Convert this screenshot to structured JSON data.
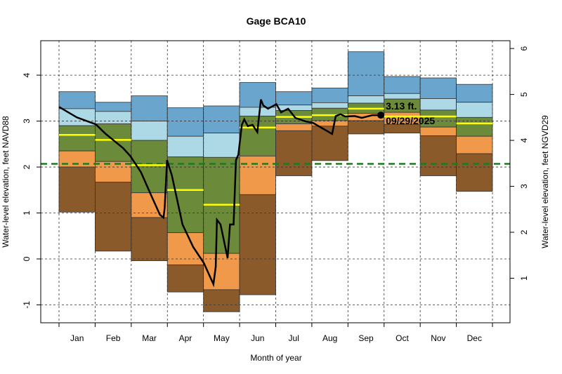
{
  "chart_data": {
    "type": "area",
    "title": "Gage BCA10",
    "xlabel": "Month of year",
    "ylabel": "Water-level elevation, feet NAVD88",
    "ylabel_right": "Water-level elevation, feet NGVD29",
    "ylim": [
      -1.39,
      4.75
    ],
    "yticks": [
      "-1",
      "0",
      "1",
      "2",
      "3",
      "4"
    ],
    "yticks_right": [
      "1",
      "2",
      "3",
      "4",
      "5",
      "6"
    ],
    "right_axis_offset_ft": 1.42,
    "grid": true,
    "months": [
      "Jan",
      "Feb",
      "Mar",
      "Apr",
      "May",
      "Jun",
      "Jul",
      "Aug",
      "Sep",
      "Oct",
      "Nov",
      "Dec"
    ],
    "band_colors": [
      "#6aa5cd",
      "#add8e6",
      "#6b8a3a",
      "#f0994a",
      "#8b5a2b"
    ],
    "median_color": "#ffff00",
    "monthly_bands": [
      {
        "month": "Jan",
        "levels": [
          3.64,
          3.27,
          2.9,
          2.35,
          2.0,
          1.02
        ],
        "median": 2.7
      },
      {
        "month": "Feb",
        "levels": [
          3.41,
          3.21,
          2.94,
          2.12,
          1.67,
          0.17
        ],
        "median": 2.59
      },
      {
        "month": "Mar",
        "levels": [
          3.55,
          3.0,
          2.58,
          1.44,
          0.9,
          -0.04
        ],
        "median": 2.04
      },
      {
        "month": "Apr",
        "levels": [
          3.29,
          2.67,
          2.22,
          0.57,
          -0.13,
          -0.72
        ],
        "median": 1.5
      },
      {
        "month": "May",
        "levels": [
          3.33,
          2.74,
          2.21,
          0.12,
          -0.67,
          -1.15
        ],
        "median": 1.18
      },
      {
        "month": "Jun",
        "levels": [
          3.84,
          3.3,
          3.11,
          2.24,
          1.4,
          -0.78
        ],
        "median": 2.86
      },
      {
        "month": "Jul",
        "levels": [
          3.64,
          3.35,
          3.23,
          2.94,
          2.79,
          1.81
        ],
        "median": 3.09
      },
      {
        "month": "Aug",
        "levels": [
          3.72,
          3.4,
          3.28,
          3.01,
          2.89,
          2.14
        ],
        "median": 3.13
      },
      {
        "month": "Sep",
        "levels": [
          4.51,
          3.55,
          3.39,
          3.17,
          3.01,
          2.72
        ],
        "median": 3.27
      },
      {
        "month": "Oct",
        "levels": [
          3.97,
          3.6,
          3.48,
          3.19,
          2.93,
          2.74
        ],
        "median": 3.1
      },
      {
        "month": "Nov",
        "levels": [
          3.94,
          3.49,
          3.24,
          2.87,
          2.68,
          1.81
        ],
        "median": 3.1
      },
      {
        "month": "Dec",
        "levels": [
          3.8,
          3.41,
          3.08,
          2.67,
          2.29,
          1.47
        ],
        "median": 2.95
      }
    ],
    "reference_line": {
      "value": 2.07,
      "color": "#1f7a1f"
    },
    "series": [
      {
        "color": "#000000",
        "points": [
          [
            "01-01",
            3.31
          ],
          [
            "01-16",
            3.08
          ],
          [
            "02-01",
            2.93
          ],
          [
            "02-09",
            2.73
          ],
          [
            "02-24",
            2.41
          ],
          [
            "03-02",
            2.24
          ],
          [
            "03-11",
            1.89
          ],
          [
            "03-20",
            1.36
          ],
          [
            "03-27",
            0.96
          ],
          [
            "03-30",
            0.9
          ],
          [
            "03-31",
            1.11
          ],
          [
            "04-02",
            2.15
          ],
          [
            "04-06",
            1.82
          ],
          [
            "04-15",
            0.75
          ],
          [
            "04-24",
            0.26
          ],
          [
            "05-03",
            -0.09
          ],
          [
            "05-11",
            -0.55
          ],
          [
            "05-13",
            -0.17
          ],
          [
            "05-14",
            0.85
          ],
          [
            "05-17",
            0.75
          ],
          [
            "05-23",
            0.02
          ],
          [
            "05-25",
            0.75
          ],
          [
            "05-28",
            0.75
          ],
          [
            "05-30",
            2.15
          ],
          [
            "06-01",
            2.27
          ],
          [
            "06-04",
            2.92
          ],
          [
            "06-06",
            3.04
          ],
          [
            "06-09",
            2.89
          ],
          [
            "06-13",
            2.92
          ],
          [
            "06-17",
            2.76
          ],
          [
            "06-20",
            3.47
          ],
          [
            "06-22",
            3.34
          ],
          [
            "06-26",
            3.27
          ],
          [
            "07-01",
            3.34
          ],
          [
            "07-03",
            3.37
          ],
          [
            "07-07",
            3.19
          ],
          [
            "07-13",
            3.27
          ],
          [
            "07-19",
            3.07
          ],
          [
            "07-28",
            2.99
          ],
          [
            "08-03",
            2.96
          ],
          [
            "08-11",
            2.84
          ],
          [
            "08-19",
            2.72
          ],
          [
            "08-22",
            3.11
          ],
          [
            "08-26",
            3.15
          ],
          [
            "08-30",
            3.1
          ],
          [
            "09-07",
            3.11
          ],
          [
            "09-13",
            3.07
          ],
          [
            "09-22",
            3.13
          ],
          [
            "09-29",
            3.13
          ]
        ]
      }
    ],
    "annotation": {
      "value_label": "3.13 ft.",
      "date_label": "09/29/2025",
      "date": "09-29",
      "value": 3.13
    }
  }
}
